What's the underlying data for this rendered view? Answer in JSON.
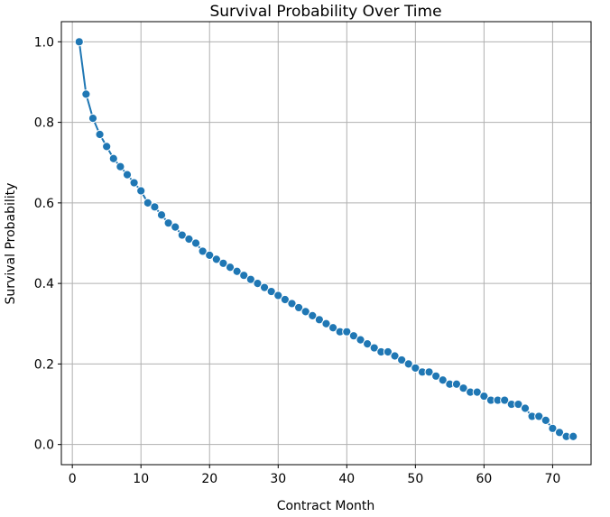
{
  "chart_data": {
    "type": "line",
    "title": "Survival Probability Over Time",
    "xlabel": "Contract Month",
    "ylabel": "Survival Probability",
    "xlim": [
      -1.6,
      75.6
    ],
    "ylim": [
      -0.05,
      1.05
    ],
    "xticks": [
      0,
      10,
      20,
      30,
      40,
      50,
      60,
      70
    ],
    "yticks": [
      0.0,
      0.2,
      0.4,
      0.6,
      0.8,
      1.0
    ],
    "ytick_labels": [
      "0.0",
      "0.2",
      "0.4",
      "0.6",
      "0.8",
      "1.0"
    ],
    "grid": true,
    "line_color": "#1f77b4",
    "marker": "circle",
    "series": [
      {
        "x": [
          1,
          2,
          3,
          4,
          5,
          6,
          7,
          8,
          9,
          10,
          11,
          12,
          13,
          14,
          15,
          16,
          17,
          18,
          19,
          20,
          21,
          22,
          23,
          24,
          25,
          26,
          27,
          28,
          29,
          30,
          31,
          32,
          33,
          34,
          35,
          36,
          37,
          38,
          39,
          40,
          41,
          42,
          43,
          44,
          45,
          46,
          47,
          48,
          49,
          50,
          51,
          52,
          53,
          54,
          55,
          56,
          57,
          58,
          59,
          60,
          61,
          62,
          63,
          64,
          65,
          66,
          67,
          68,
          69,
          70,
          71,
          72,
          73
        ],
        "y": [
          1.0,
          0.87,
          0.81,
          0.77,
          0.74,
          0.71,
          0.69,
          0.67,
          0.65,
          0.63,
          0.6,
          0.59,
          0.57,
          0.55,
          0.54,
          0.52,
          0.51,
          0.5,
          0.48,
          0.47,
          0.46,
          0.45,
          0.44,
          0.43,
          0.42,
          0.41,
          0.4,
          0.39,
          0.38,
          0.37,
          0.36,
          0.35,
          0.34,
          0.33,
          0.32,
          0.31,
          0.3,
          0.29,
          0.28,
          0.28,
          0.27,
          0.26,
          0.25,
          0.24,
          0.23,
          0.23,
          0.22,
          0.21,
          0.2,
          0.19,
          0.18,
          0.18,
          0.17,
          0.16,
          0.15,
          0.15,
          0.14,
          0.13,
          0.13,
          0.12,
          0.11,
          0.11,
          0.11,
          0.1,
          0.1,
          0.09,
          0.07,
          0.07,
          0.06,
          0.04,
          0.03,
          0.02,
          0.02
        ]
      }
    ]
  }
}
